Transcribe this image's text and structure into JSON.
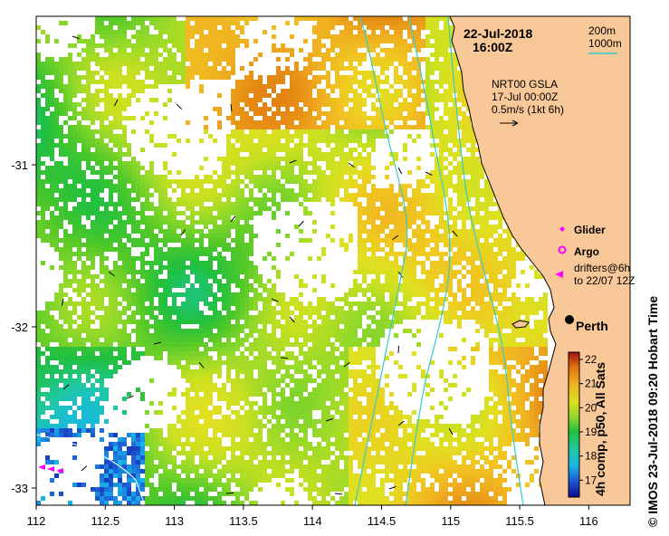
{
  "map": {
    "date": "22-Jul-2018",
    "time": "16:00Z",
    "depth_contours": [
      "200m",
      "1000m"
    ],
    "gsla_line1": "NRT00 GSLA",
    "gsla_line2": "17-Jul 00:00Z",
    "gsla_line3": "0.5m/s (1kt 6h)",
    "lon_ticks": [
      "112",
      "112.5",
      "113",
      "113.5",
      "114",
      "114.5",
      "115",
      "115.5",
      "116"
    ],
    "lat_ticks": [
      "-31",
      "-32",
      "-33"
    ],
    "legend": {
      "glider": "Glider",
      "argo": "Argo",
      "drifters_line1": "drifters@6h",
      "drifters_line2": "to 22/07 12Z"
    },
    "city": "Perth",
    "colorbar": {
      "ticks": [
        "17",
        "18",
        "19",
        "20",
        "21",
        "22"
      ],
      "min": 16.3,
      "max": 22.3,
      "label": "4h comp, p50, All Sats"
    },
    "credit": "© IMOS 23-Jul-2018 09:20 Hobart Time",
    "colors": {
      "land": "#f9c898",
      "contour": "#33cccc",
      "contour_200": "#0000ff",
      "glider": "#ff00ff",
      "argo": "#ff00ff",
      "drifter": "#ff00ff",
      "city": "#000000"
    }
  }
}
